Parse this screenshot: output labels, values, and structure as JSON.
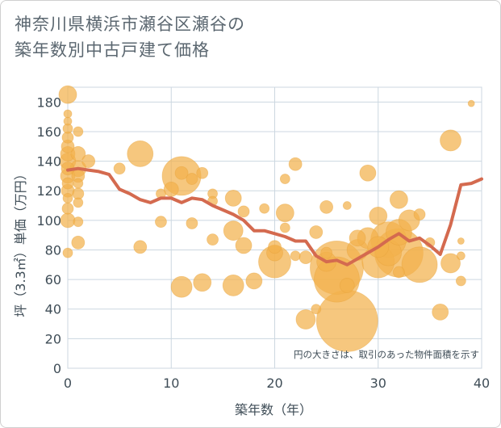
{
  "title": {
    "line1": "神奈川県横浜市瀬谷区瀬谷の",
    "line2": "築年数別中古戸建て価格"
  },
  "chart_data": {
    "type": "scatter",
    "title": "神奈川県横浜市瀬谷区瀬谷の築年数別中古戸建て価格",
    "xlabel": "築年数（年）",
    "ylabel": "坪（3.3㎡）単価（万円）",
    "xlim": [
      0,
      40
    ],
    "ylim": [
      0,
      190
    ],
    "x_ticks": [
      0,
      10,
      20,
      30,
      40
    ],
    "y_ticks": [
      0,
      20,
      40,
      60,
      80,
      100,
      120,
      140,
      160,
      180
    ],
    "grid": true,
    "note": "円の大きさは、取引のあった物件面積を示す",
    "colors": {
      "bubble": "#f2b24c",
      "line": "#d46a4f",
      "grid": "#ccd7e0"
    },
    "bubbles": [
      {
        "x": 0,
        "y": 185,
        "s": 11
      },
      {
        "x": 0,
        "y": 172,
        "s": 5
      },
      {
        "x": 0,
        "y": 167,
        "s": 5
      },
      {
        "x": 0,
        "y": 162,
        "s": 6
      },
      {
        "x": 0,
        "y": 156,
        "s": 7
      },
      {
        "x": 0,
        "y": 150,
        "s": 8
      },
      {
        "x": 0,
        "y": 145,
        "s": 9
      },
      {
        "x": 0,
        "y": 140,
        "s": 10
      },
      {
        "x": 0,
        "y": 135,
        "s": 8
      },
      {
        "x": 0,
        "y": 130,
        "s": 9
      },
      {
        "x": 0,
        "y": 125,
        "s": 7
      },
      {
        "x": 0,
        "y": 120,
        "s": 8
      },
      {
        "x": 0,
        "y": 115,
        "s": 6
      },
      {
        "x": 0,
        "y": 108,
        "s": 7
      },
      {
        "x": 0,
        "y": 100,
        "s": 9
      },
      {
        "x": 0,
        "y": 78,
        "s": 6
      },
      {
        "x": 1,
        "y": 160,
        "s": 6
      },
      {
        "x": 1,
        "y": 145,
        "s": 9
      },
      {
        "x": 1,
        "y": 135,
        "s": 10
      },
      {
        "x": 1,
        "y": 130,
        "s": 8
      },
      {
        "x": 1,
        "y": 125,
        "s": 6
      },
      {
        "x": 1,
        "y": 118,
        "s": 7
      },
      {
        "x": 1,
        "y": 112,
        "s": 6
      },
      {
        "x": 1,
        "y": 99,
        "s": 6
      },
      {
        "x": 1,
        "y": 85,
        "s": 8
      },
      {
        "x": 2,
        "y": 140,
        "s": 8
      },
      {
        "x": 5,
        "y": 135,
        "s": 7
      },
      {
        "x": 7,
        "y": 145,
        "s": 16
      },
      {
        "x": 7,
        "y": 82,
        "s": 8
      },
      {
        "x": 9,
        "y": 118,
        "s": 6
      },
      {
        "x": 9,
        "y": 99,
        "s": 7
      },
      {
        "x": 10,
        "y": 121,
        "s": 9
      },
      {
        "x": 11,
        "y": 130,
        "s": 24
      },
      {
        "x": 11,
        "y": 132,
        "s": 8
      },
      {
        "x": 11,
        "y": 55,
        "s": 13
      },
      {
        "x": 12,
        "y": 128,
        "s": 7
      },
      {
        "x": 12,
        "y": 98,
        "s": 7
      },
      {
        "x": 13,
        "y": 132,
        "s": 7
      },
      {
        "x": 13,
        "y": 58,
        "s": 11
      },
      {
        "x": 14,
        "y": 118,
        "s": 6
      },
      {
        "x": 14,
        "y": 113,
        "s": 6
      },
      {
        "x": 14,
        "y": 87,
        "s": 7
      },
      {
        "x": 16,
        "y": 115,
        "s": 10
      },
      {
        "x": 16,
        "y": 93,
        "s": 12
      },
      {
        "x": 16,
        "y": 56,
        "s": 13
      },
      {
        "x": 17,
        "y": 106,
        "s": 7
      },
      {
        "x": 17,
        "y": 83,
        "s": 10
      },
      {
        "x": 18,
        "y": 59,
        "s": 10
      },
      {
        "x": 19,
        "y": 108,
        "s": 6
      },
      {
        "x": 20,
        "y": 82,
        "s": 8
      },
      {
        "x": 20,
        "y": 78,
        "s": 10
      },
      {
        "x": 20,
        "y": 72,
        "s": 20
      },
      {
        "x": 21,
        "y": 128,
        "s": 6
      },
      {
        "x": 21,
        "y": 105,
        "s": 11
      },
      {
        "x": 21,
        "y": 95,
        "s": 6
      },
      {
        "x": 22,
        "y": 138,
        "s": 8
      },
      {
        "x": 22,
        "y": 76,
        "s": 6
      },
      {
        "x": 23,
        "y": 75,
        "s": 8
      },
      {
        "x": 23,
        "y": 33,
        "s": 12
      },
      {
        "x": 24,
        "y": 92,
        "s": 8
      },
      {
        "x": 24,
        "y": 40,
        "s": 6
      },
      {
        "x": 25,
        "y": 109,
        "s": 8
      },
      {
        "x": 25,
        "y": 78,
        "s": 7
      },
      {
        "x": 25,
        "y": 72,
        "s": 12
      },
      {
        "x": 26,
        "y": 68,
        "s": 33
      },
      {
        "x": 26,
        "y": 60,
        "s": 28
      },
      {
        "x": 27,
        "y": 110,
        "s": 5
      },
      {
        "x": 27,
        "y": 56,
        "s": 9
      },
      {
        "x": 27,
        "y": 32,
        "s": 38
      },
      {
        "x": 28,
        "y": 88,
        "s": 10
      },
      {
        "x": 28,
        "y": 80,
        "s": 13
      },
      {
        "x": 29,
        "y": 132,
        "s": 10
      },
      {
        "x": 29,
        "y": 88,
        "s": 13
      },
      {
        "x": 30,
        "y": 103,
        "s": 11
      },
      {
        "x": 30,
        "y": 82,
        "s": 13
      },
      {
        "x": 30,
        "y": 72,
        "s": 20
      },
      {
        "x": 31,
        "y": 87,
        "s": 22
      },
      {
        "x": 31,
        "y": 78,
        "s": 16
      },
      {
        "x": 32,
        "y": 114,
        "s": 11
      },
      {
        "x": 32,
        "y": 92,
        "s": 16
      },
      {
        "x": 32,
        "y": 78,
        "s": 30
      },
      {
        "x": 32,
        "y": 65,
        "s": 7
      },
      {
        "x": 33,
        "y": 100,
        "s": 13
      },
      {
        "x": 34,
        "y": 104,
        "s": 7
      },
      {
        "x": 34,
        "y": 70,
        "s": 22
      },
      {
        "x": 35,
        "y": 85,
        "s": 6
      },
      {
        "x": 36,
        "y": 38,
        "s": 10
      },
      {
        "x": 37,
        "y": 154,
        "s": 13
      },
      {
        "x": 37,
        "y": 71,
        "s": 12
      },
      {
        "x": 38,
        "y": 86,
        "s": 4
      },
      {
        "x": 38,
        "y": 76,
        "s": 5
      },
      {
        "x": 38,
        "y": 59,
        "s": 6
      },
      {
        "x": 39,
        "y": 179,
        "s": 4
      }
    ],
    "trend": {
      "x": [
        0,
        1,
        2,
        3,
        4,
        5,
        6,
        7,
        8,
        9,
        10,
        11,
        12,
        13,
        14,
        15,
        16,
        17,
        18,
        19,
        20,
        21,
        22,
        23,
        24,
        25,
        26,
        27,
        28,
        29,
        30,
        31,
        32,
        33,
        34,
        35,
        36,
        37,
        38,
        39,
        40
      ],
      "y": [
        134,
        135,
        134,
        133,
        131,
        121,
        118,
        114,
        112,
        115,
        115,
        112,
        115,
        114,
        110,
        107,
        104,
        100,
        93,
        93,
        91,
        89,
        86,
        86,
        76,
        72,
        73,
        70,
        74,
        78,
        82,
        87,
        91,
        86,
        88,
        83,
        77,
        97,
        124,
        125,
        128
      ]
    }
  }
}
